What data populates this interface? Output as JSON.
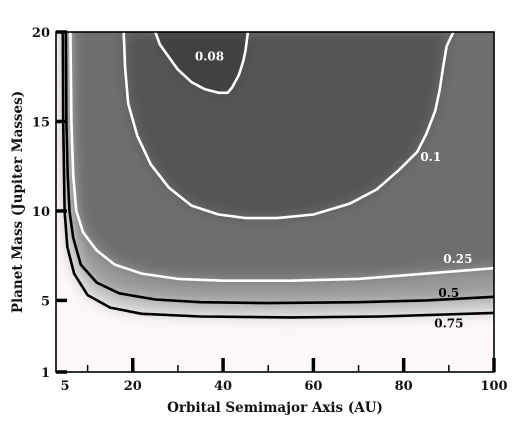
{
  "chart_data": {
    "type": "heatmap",
    "title": "",
    "xlabel": "Orbital Semimajor Axis (AU)",
    "ylabel": "Planet Mass (Jupiter Masses)",
    "xlim": [
      3,
      100
    ],
    "ylim": [
      1,
      20
    ],
    "x_ticks": [
      {
        "value": 5,
        "label": "5"
      },
      {
        "value": 20,
        "label": "20"
      },
      {
        "value": 40,
        "label": "40"
      },
      {
        "value": 60,
        "label": "60"
      },
      {
        "value": 80,
        "label": "80"
      },
      {
        "value": 100,
        "label": "100"
      }
    ],
    "x_minor_ticks": [
      10,
      30,
      50,
      70,
      90
    ],
    "y_ticks": [
      {
        "value": 1,
        "label": "1"
      },
      {
        "value": 5,
        "label": "5"
      },
      {
        "value": 10,
        "label": "10"
      },
      {
        "value": 15,
        "label": "15"
      },
      {
        "value": 20,
        "label": "20"
      }
    ],
    "grid": false,
    "colormap": {
      "high": "#fdf7fb",
      "low": "#3c3c3c"
    },
    "contours": [
      {
        "level": "0.08",
        "color": "#ffffff",
        "label_at": [
          37,
          18.4
        ],
        "points": [
          [
            25,
            20
          ],
          [
            26,
            19.3
          ],
          [
            28,
            18.6
          ],
          [
            30,
            17.9
          ],
          [
            33,
            17.2
          ],
          [
            36,
            16.8
          ],
          [
            39,
            16.6
          ],
          [
            41,
            16.6
          ],
          [
            42,
            16.9
          ],
          [
            43.5,
            17.6
          ],
          [
            44.5,
            18.4
          ],
          [
            45,
            19
          ],
          [
            45.5,
            20
          ]
        ]
      },
      {
        "level": "0.1",
        "color": "#ffffff",
        "label_at": [
          86,
          12.8
        ],
        "points": [
          [
            18,
            20
          ],
          [
            18.3,
            18
          ],
          [
            19,
            16
          ],
          [
            21,
            14.2
          ],
          [
            24,
            12.6
          ],
          [
            28,
            11.3
          ],
          [
            33,
            10.3
          ],
          [
            39,
            9.8
          ],
          [
            45,
            9.6
          ],
          [
            52,
            9.6
          ],
          [
            60,
            9.8
          ],
          [
            68,
            10.4
          ],
          [
            74,
            11.2
          ],
          [
            79,
            12.3
          ],
          [
            83,
            13.3
          ],
          [
            85,
            14.3
          ],
          [
            87,
            15.6
          ],
          [
            88,
            16.8
          ],
          [
            88.7,
            18
          ],
          [
            89.5,
            19.2
          ],
          [
            91,
            20
          ]
        ]
      },
      {
        "level": "0.25",
        "color": "#ffffff",
        "label_at": [
          92,
          7.1
        ],
        "points": [
          [
            6.2,
            20
          ],
          [
            6.4,
            15
          ],
          [
            6.8,
            12
          ],
          [
            7.5,
            10
          ],
          [
            9,
            8.8
          ],
          [
            12,
            7.8
          ],
          [
            16,
            7
          ],
          [
            22,
            6.5
          ],
          [
            30,
            6.2
          ],
          [
            40,
            6.1
          ],
          [
            55,
            6.1
          ],
          [
            70,
            6.2
          ],
          [
            85,
            6.5
          ],
          [
            100,
            6.8
          ]
        ]
      },
      {
        "level": "0.5",
        "color": "#000000",
        "label_at": [
          90,
          5.2
        ],
        "points": [
          [
            5.2,
            20
          ],
          [
            5.3,
            15
          ],
          [
            5.6,
            12
          ],
          [
            6,
            10
          ],
          [
            6.8,
            8.5
          ],
          [
            8.5,
            7
          ],
          [
            12,
            6
          ],
          [
            17,
            5.4
          ],
          [
            25,
            5.05
          ],
          [
            35,
            4.9
          ],
          [
            50,
            4.85
          ],
          [
            70,
            4.9
          ],
          [
            85,
            5
          ],
          [
            100,
            5.2
          ]
        ]
      },
      {
        "level": "0.75",
        "color": "#000000",
        "label_at": [
          90,
          3.5
        ],
        "points": [
          [
            4.5,
            20
          ],
          [
            4.6,
            15
          ],
          [
            4.9,
            10
          ],
          [
            5.5,
            8
          ],
          [
            7,
            6.5
          ],
          [
            10,
            5.3
          ],
          [
            15,
            4.6
          ],
          [
            22,
            4.25
          ],
          [
            35,
            4.1
          ],
          [
            55,
            4.05
          ],
          [
            75,
            4.1
          ],
          [
            100,
            4.3
          ]
        ]
      }
    ]
  }
}
